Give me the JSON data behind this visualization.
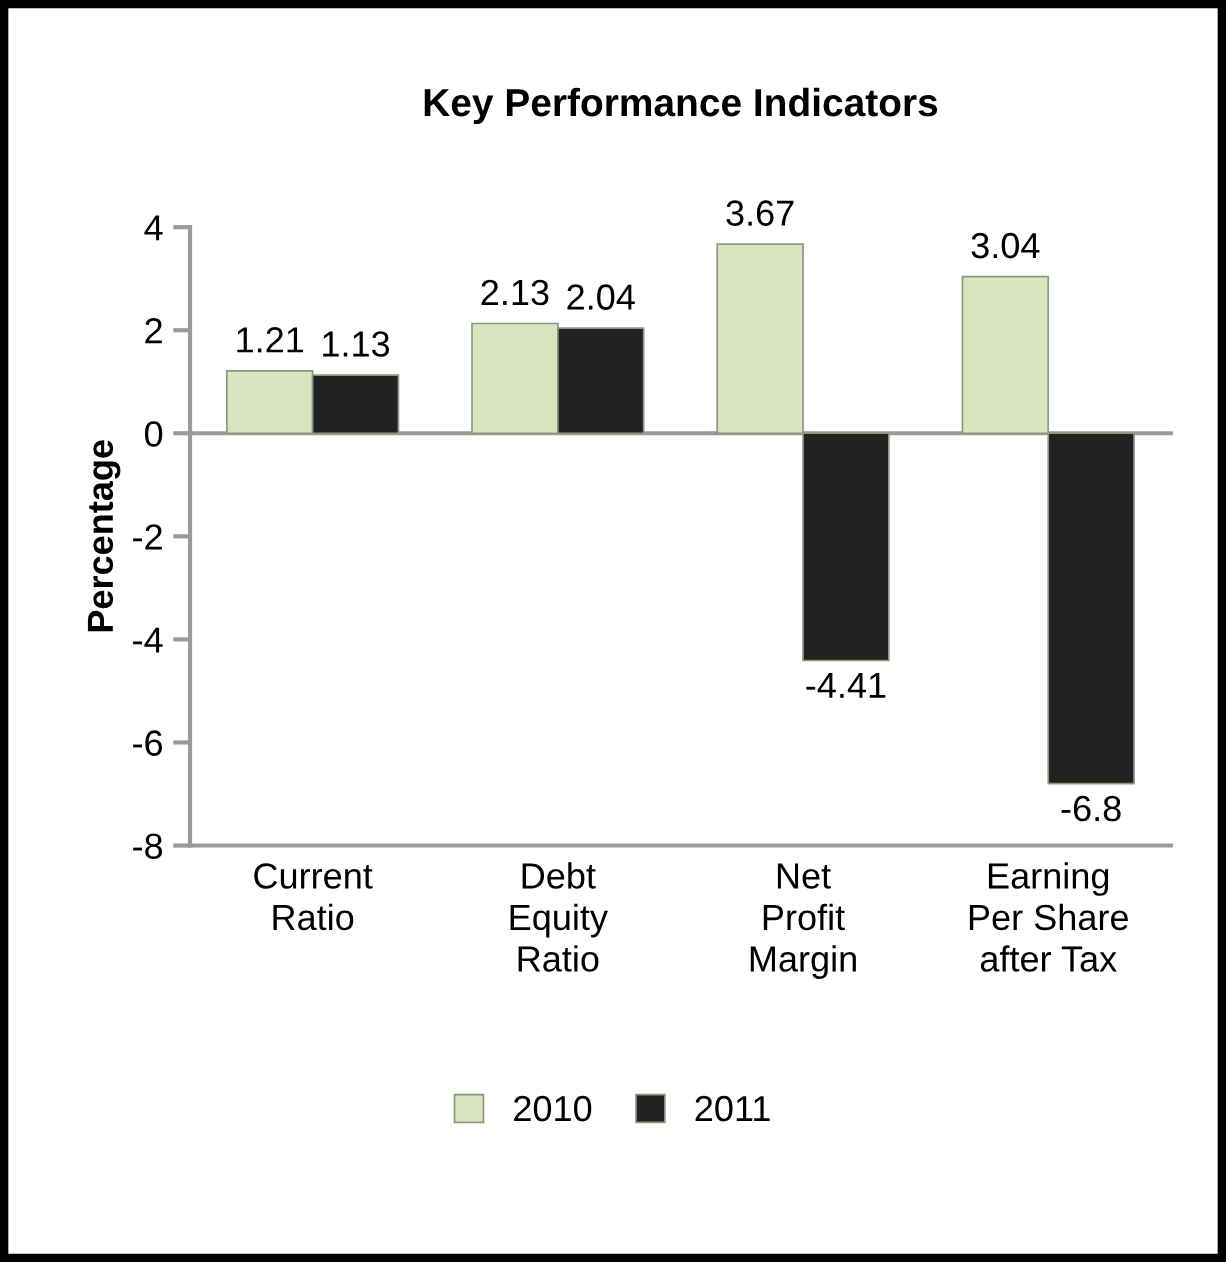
{
  "chart_data": {
    "type": "bar",
    "title": "Key Performance Indicators",
    "ylabel": "Percentage",
    "categories": [
      "Current\nRatio",
      "Debt\nEquity\nRatio",
      "Net\nProfit\nMargin",
      "Earning\nPer Share\nafter Tax"
    ],
    "series": [
      {
        "name": "2010",
        "color": "#d7e4bd",
        "values": [
          1.21,
          2.13,
          3.67,
          3.04
        ]
      },
      {
        "name": "2011",
        "color": "#222222",
        "values": [
          1.13,
          2.04,
          -4.41,
          -6.8
        ]
      }
    ],
    "ylim": [
      -8,
      4
    ],
    "yticks": [
      -8,
      -6,
      -4,
      -2,
      0,
      2,
      4
    ],
    "data_labels": true,
    "legend": "bottom"
  }
}
